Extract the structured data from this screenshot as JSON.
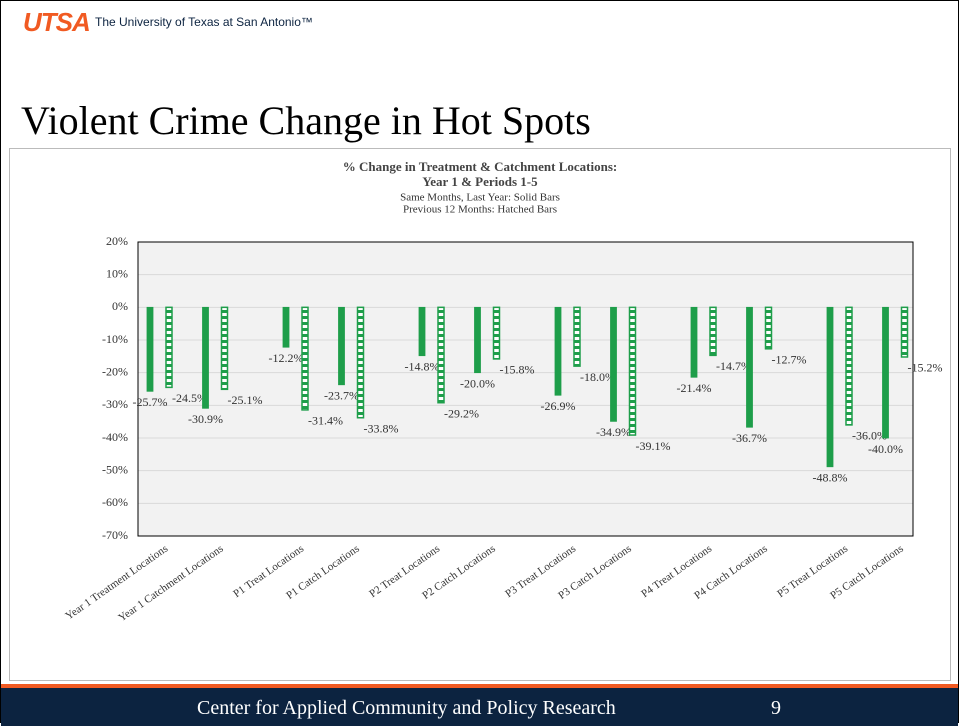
{
  "header": {
    "logo": "UTSA",
    "institution": "The University of Texas at San Antonio™"
  },
  "slide_title": "Violent Crime Change in Hot Spots",
  "footer": {
    "text": "Center for Applied Community and Policy Research",
    "page": "9"
  },
  "chart_data": {
    "type": "bar",
    "title": [
      "% Change in Treatment & Catchment Locations:",
      "Year 1 & Periods 1-5"
    ],
    "subtitle": [
      "Same Months, Last Year: Solid Bars",
      "Previous 12 Months: Hatched Bars"
    ],
    "categories": [
      "Year 1 Treatment Locations",
      "Year 1 Catchment Locations",
      "P1 Treat Locations",
      "P1 Catch Locations",
      "P2 Treat Locations",
      "P2 Catch Locations",
      "P3 Treat Locations",
      "P3 Catch Locations",
      "P4 Treat Locations",
      "P4 Catch Locations",
      "P5 Treat Locations",
      "P5 Catch Locations"
    ],
    "series": [
      {
        "color": "#1e9e4a",
        "hatched": false,
        "values": [
          -25.7,
          -30.9,
          -12.2,
          -23.7,
          -14.8,
          -20.0,
          -26.9,
          -34.9,
          -21.4,
          -36.7,
          -48.8,
          -40.0
        ],
        "value_labels": [
          "-25.7%",
          "-30.9%",
          "-12.2%",
          "-23.7%",
          "-14.8%",
          "-20.0%",
          "-26.9%",
          "-34.9%",
          "-21.4%",
          "-36.7%",
          "-48.8%",
          "-40.0%"
        ]
      },
      {
        "color": "#1e9e4a",
        "hatched": true,
        "values": [
          -24.5,
          -25.1,
          -31.4,
          -33.8,
          -29.2,
          -15.8,
          -18.0,
          -39.1,
          -14.7,
          -12.7,
          -36.0,
          -15.2
        ],
        "value_labels": [
          "-24.5%",
          "-25.1%",
          "-31.4%",
          "-33.8%",
          "-29.2%",
          "-15.8%",
          "-18.0%",
          "-39.1%",
          "-14.7%",
          "-12.7%",
          "-36.0%",
          "-15.2%"
        ]
      }
    ],
    "ylim": [
      -70,
      20
    ],
    "yticks": [
      {
        "value": 20,
        "label": "20%"
      },
      {
        "value": 10,
        "label": "10%"
      },
      {
        "value": 0,
        "label": "0%"
      },
      {
        "value": -10,
        "label": "-10%"
      },
      {
        "value": -20,
        "label": "-20%"
      },
      {
        "value": -30,
        "label": "-30%"
      },
      {
        "value": -40,
        "label": "-40%"
      },
      {
        "value": -50,
        "label": "-50%"
      },
      {
        "value": -60,
        "label": "-60%"
      },
      {
        "value": -70,
        "label": "-70%"
      }
    ],
    "grid": true
  }
}
